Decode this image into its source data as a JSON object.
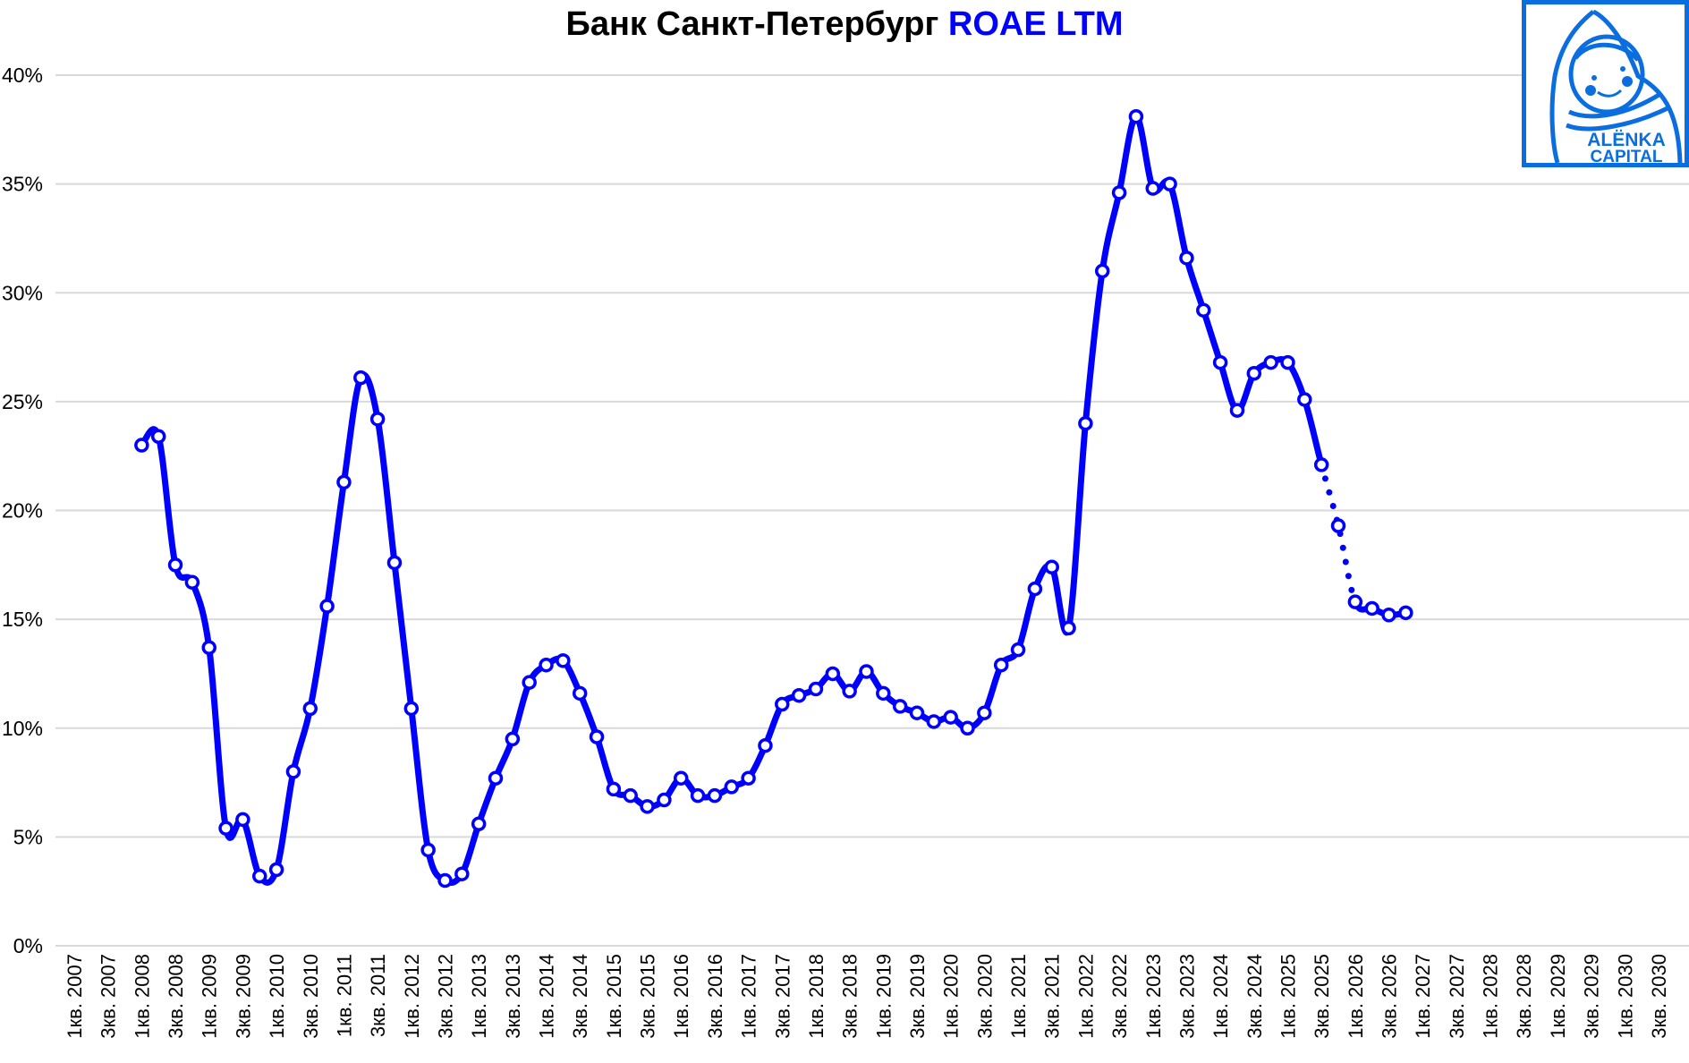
{
  "title": {
    "main": "Банк Санкт-Петербург",
    "accent": "ROAE LTM"
  },
  "logo": {
    "line1": "ALЁNKA",
    "line2": "CAPITAL"
  },
  "colors": {
    "line": "#0000ff",
    "grid": "#d9d9d9",
    "logo": "#0a6ee0"
  },
  "chart_data": {
    "type": "line",
    "title": "Банк Санкт-Петербург ROAE LTM",
    "xlabel": "",
    "ylabel": "",
    "ylim": [
      0,
      40
    ],
    "yticks": [
      "0%",
      "5%",
      "10%",
      "15%",
      "20%",
      "25%",
      "30%",
      "35%",
      "40%"
    ],
    "grid": true,
    "xtick_labels": [
      "1кв. 2007",
      "3кв. 2007",
      "1кв. 2008",
      "3кв. 2008",
      "1кв. 2009",
      "3кв. 2009",
      "1кв. 2010",
      "3кв. 2010",
      "1кв. 2011",
      "3кв. 2011",
      "1кв. 2012",
      "3кв. 2012",
      "1кв. 2013",
      "3кв. 2013",
      "1кв. 2014",
      "3кв. 2014",
      "1кв. 2015",
      "3кв. 2015",
      "1кв. 2016",
      "3кв. 2016",
      "1кв. 2017",
      "3кв. 2017",
      "1кв. 2018",
      "3кв. 2018",
      "1кв. 2019",
      "3кв. 2019",
      "1кв. 2020",
      "3кв. 2020",
      "1кв. 2021",
      "3кв. 2021",
      "1кв. 2022",
      "3кв. 2022",
      "1кв. 2023",
      "3кв. 2023",
      "1кв. 2024",
      "3кв. 2024",
      "1кв. 2025",
      "3кв. 2025",
      "1кв. 2026",
      "3кв. 2026",
      "1кв. 2027",
      "3кв. 2027",
      "1кв. 2028",
      "3кв. 2028",
      "1кв. 2029",
      "3кв. 2029",
      "1кв. 2030",
      "3кв. 2030"
    ],
    "x_start": "1кв. 2008",
    "x_step": "quarter",
    "series": [
      {
        "name": "ROAE LTM",
        "unit": "%",
        "values": [
          23.0,
          23.4,
          17.5,
          16.7,
          13.7,
          5.4,
          5.8,
          3.2,
          3.5,
          8.0,
          10.9,
          15.6,
          21.3,
          26.1,
          24.2,
          17.6,
          10.9,
          4.4,
          3.0,
          3.3,
          5.6,
          7.7,
          9.5,
          12.1,
          12.9,
          13.1,
          11.6,
          9.6,
          7.2,
          6.9,
          6.4,
          6.7,
          7.7,
          6.9,
          6.9,
          7.3,
          7.7,
          9.2,
          11.1,
          11.5,
          11.8,
          12.5,
          11.7,
          12.6,
          11.6,
          11.0,
          10.7,
          10.3,
          10.5,
          10.0,
          10.7,
          12.9,
          13.6,
          16.4,
          17.4,
          14.6,
          24.0,
          31.0,
          34.6,
          38.1,
          34.8,
          35.0,
          31.6,
          29.2,
          26.8,
          24.6,
          26.3,
          26.8,
          26.8,
          25.1,
          22.1,
          19.3,
          15.8,
          15.5,
          15.2,
          15.3
        ],
        "dotted_segment": [
          "3кв. 2025",
          "1кв. 2026"
        ]
      }
    ]
  }
}
